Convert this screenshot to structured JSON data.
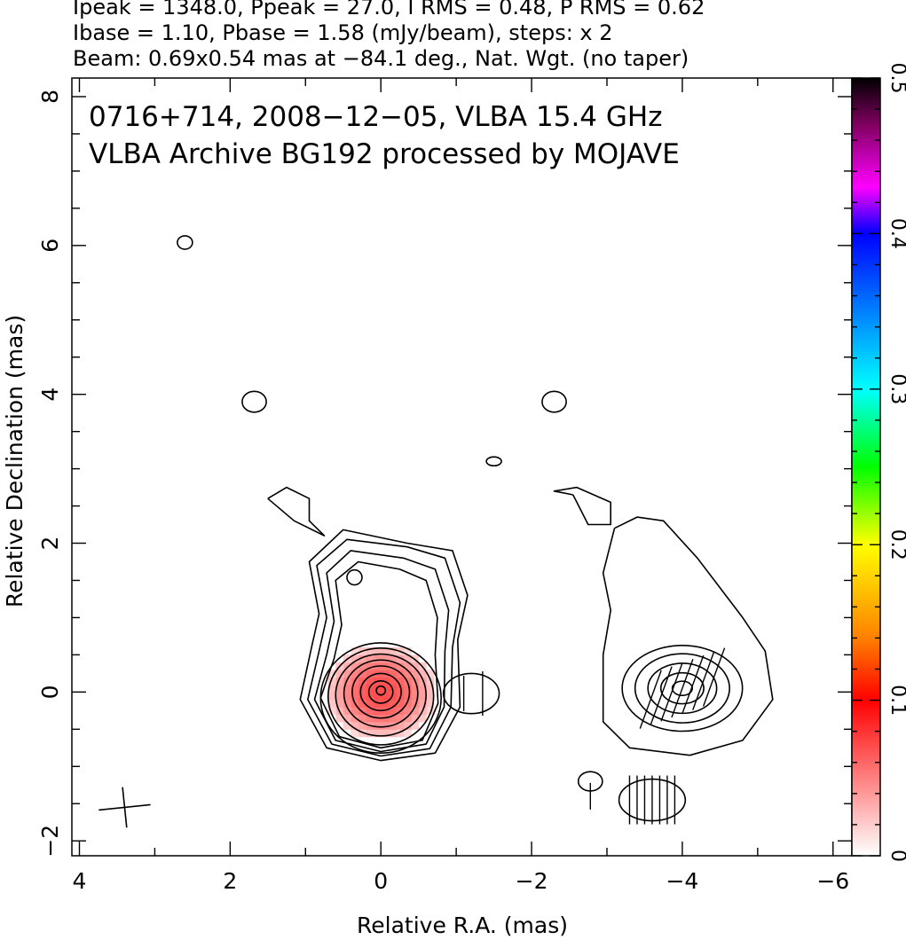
{
  "header": {
    "line1": "Ipeak = 1348.0, Ppeak = 27.0, I RMS = 0.48, P RMS = 0.62",
    "line2": "Ibase = 1.10, Pbase = 1.58 (mJy/beam), steps: x 2",
    "line3": "Beam: 0.69x0.54 mas at −84.1 deg., Nat. Wgt. (no taper)"
  },
  "chart_data": {
    "type": "heatmap",
    "title_line1": "0716+714, 2008−12−05, VLBA 15.4 GHz",
    "title_line2": "VLBA Archive BG192 processed by MOJAVE",
    "xlabel": "Relative R.A. (mas)",
    "ylabel": "Relative Declination (mas)",
    "xlim": [
      4.1,
      -6.25
    ],
    "ylim": [
      -2.2,
      8.25
    ],
    "x_ticks": [
      4,
      2,
      0,
      -2,
      -4,
      -6
    ],
    "x_tick_labels": [
      "4",
      "2",
      "0",
      "−2",
      "−4",
      "−6"
    ],
    "y_ticks": [
      -2,
      0,
      2,
      4,
      6,
      8
    ],
    "y_tick_labels": [
      "−2",
      "0",
      "2",
      "4",
      "6",
      "8"
    ],
    "colorbar": {
      "range": [
        0,
        0.5
      ],
      "ticks": [
        0,
        0.1,
        0.2,
        0.3,
        0.4,
        0.5
      ],
      "tick_labels": [
        "0",
        "0.1",
        "0.2",
        "0.3",
        "0.4",
        "0.5"
      ],
      "stops": [
        {
          "v": 0.0,
          "color": "#ffffff"
        },
        {
          "v": 0.1,
          "color": "#ff0000"
        },
        {
          "v": 0.14,
          "color": "#ff8000"
        },
        {
          "v": 0.2,
          "color": "#ffff00"
        },
        {
          "v": 0.25,
          "color": "#00ff00"
        },
        {
          "v": 0.3,
          "color": "#00ffff"
        },
        {
          "v": 0.35,
          "color": "#0080ff"
        },
        {
          "v": 0.4,
          "color": "#0000ff"
        },
        {
          "v": 0.43,
          "color": "#ff00ff"
        },
        {
          "v": 0.47,
          "color": "#800060"
        },
        {
          "v": 0.5,
          "color": "#000000"
        }
      ]
    },
    "polarization_region": {
      "center": [
        0.0,
        0.0
      ],
      "radius_x": 0.75,
      "radius_y": 0.65,
      "value": 0.07
    },
    "components": [
      {
        "name": "core",
        "center": [
          0.0,
          0.0
        ],
        "contours": [
          {
            "rx": 0.06,
            "ry": 0.06,
            "dx": 0,
            "dy": 0.02
          },
          {
            "rx": 0.16,
            "ry": 0.15,
            "dx": 0,
            "dy": 0.0
          },
          {
            "rx": 0.27,
            "ry": 0.25,
            "dx": 0,
            "dy": 0.0
          },
          {
            "rx": 0.38,
            "ry": 0.35,
            "dx": 0,
            "dy": 0.0
          },
          {
            "rx": 0.49,
            "ry": 0.45,
            "dx": 0,
            "dy": -0.02
          },
          {
            "rx": 0.6,
            "ry": 0.55,
            "dx": 0,
            "dy": -0.04
          },
          {
            "rx": 0.7,
            "ry": 0.65,
            "dx": 0,
            "dy": -0.06
          },
          {
            "rx": 0.8,
            "ry": 0.74,
            "dx": 0,
            "dy": -0.08
          }
        ],
        "jet_contours": [
          {
            "outline": [
              [
                -0.35,
                2.0
              ],
              [
                -0.95,
                1.9
              ],
              [
                -1.15,
                1.3
              ],
              [
                -1.02,
                0.7
              ],
              [
                -1.05,
                -0.2
              ],
              [
                -0.72,
                -0.82
              ],
              [
                0.0,
                -0.92
              ],
              [
                0.72,
                -0.75
              ],
              [
                1.07,
                -0.1
              ],
              [
                0.92,
                0.6
              ],
              [
                0.82,
                1.05
              ],
              [
                0.95,
                1.75
              ],
              [
                0.5,
                2.18
              ],
              [
                -0.35,
                2.0
              ]
            ]
          },
          {
            "outline": [
              [
                -0.35,
                1.95
              ],
              [
                -0.85,
                1.8
              ],
              [
                -1.05,
                1.2
              ],
              [
                -0.95,
                0.6
              ],
              [
                -0.93,
                -0.2
              ],
              [
                -0.65,
                -0.76
              ],
              [
                0.0,
                -0.86
              ],
              [
                0.65,
                -0.7
              ],
              [
                0.97,
                -0.1
              ],
              [
                0.82,
                0.55
              ],
              [
                0.72,
                1.0
              ],
              [
                0.85,
                1.7
              ],
              [
                0.45,
                2.05
              ],
              [
                -0.35,
                1.95
              ]
            ]
          },
          {
            "outline": [
              [
                -0.3,
                1.8
              ],
              [
                -0.72,
                1.65
              ],
              [
                -0.9,
                1.1
              ],
              [
                -0.85,
                0.55
              ],
              [
                -0.84,
                -0.2
              ],
              [
                -0.6,
                -0.7
              ],
              [
                0.0,
                -0.8
              ],
              [
                0.6,
                -0.65
              ],
              [
                0.88,
                -0.1
              ],
              [
                0.72,
                0.5
              ],
              [
                0.62,
                0.95
              ],
              [
                0.72,
                1.6
              ],
              [
                0.4,
                1.9
              ],
              [
                -0.3,
                1.8
              ]
            ]
          },
          {
            "outline": [
              [
                -0.25,
                1.65
              ],
              [
                -0.6,
                1.5
              ],
              [
                -0.75,
                1.0
              ],
              [
                -0.72,
                0.5
              ],
              [
                -0.76,
                -0.15
              ],
              [
                -0.55,
                -0.65
              ],
              [
                0.0,
                -0.75
              ],
              [
                0.55,
                -0.6
              ],
              [
                0.8,
                -0.08
              ],
              [
                0.62,
                0.45
              ],
              [
                0.52,
                0.9
              ],
              [
                0.6,
                1.5
              ],
              [
                0.3,
                1.75
              ],
              [
                -0.25,
                1.65
              ]
            ]
          }
        ]
      },
      {
        "name": "lobe-west",
        "center": [
          -4.0,
          0.05
        ]
      },
      {
        "name": "component-east",
        "center": [
          -1.2,
          -0.02
        ]
      },
      {
        "name": "component-south",
        "center": [
          -3.6,
          -1.45
        ]
      }
    ],
    "isolated_contours": [
      {
        "center": [
          2.6,
          6.04
        ],
        "rx": 0.1,
        "ry": 0.09
      },
      {
        "center": [
          1.68,
          3.9
        ],
        "rx": 0.16,
        "ry": 0.14
      },
      {
        "center": [
          -2.3,
          3.9
        ],
        "rx": 0.16,
        "ry": 0.14
      },
      {
        "center": [
          -1.5,
          3.1
        ],
        "rx": 0.1,
        "ry": 0.06
      },
      {
        "center": [
          0.35,
          1.54
        ],
        "rx": 0.1,
        "ry": 0.1
      },
      {
        "center": [
          -2.78,
          -1.2
        ],
        "rx": 0.16,
        "ry": 0.13
      }
    ],
    "beam": {
      "major_mas": 0.69,
      "minor_mas": 0.54,
      "pa_deg": -84.1,
      "position": [
        3.4,
        -1.55
      ]
    }
  }
}
